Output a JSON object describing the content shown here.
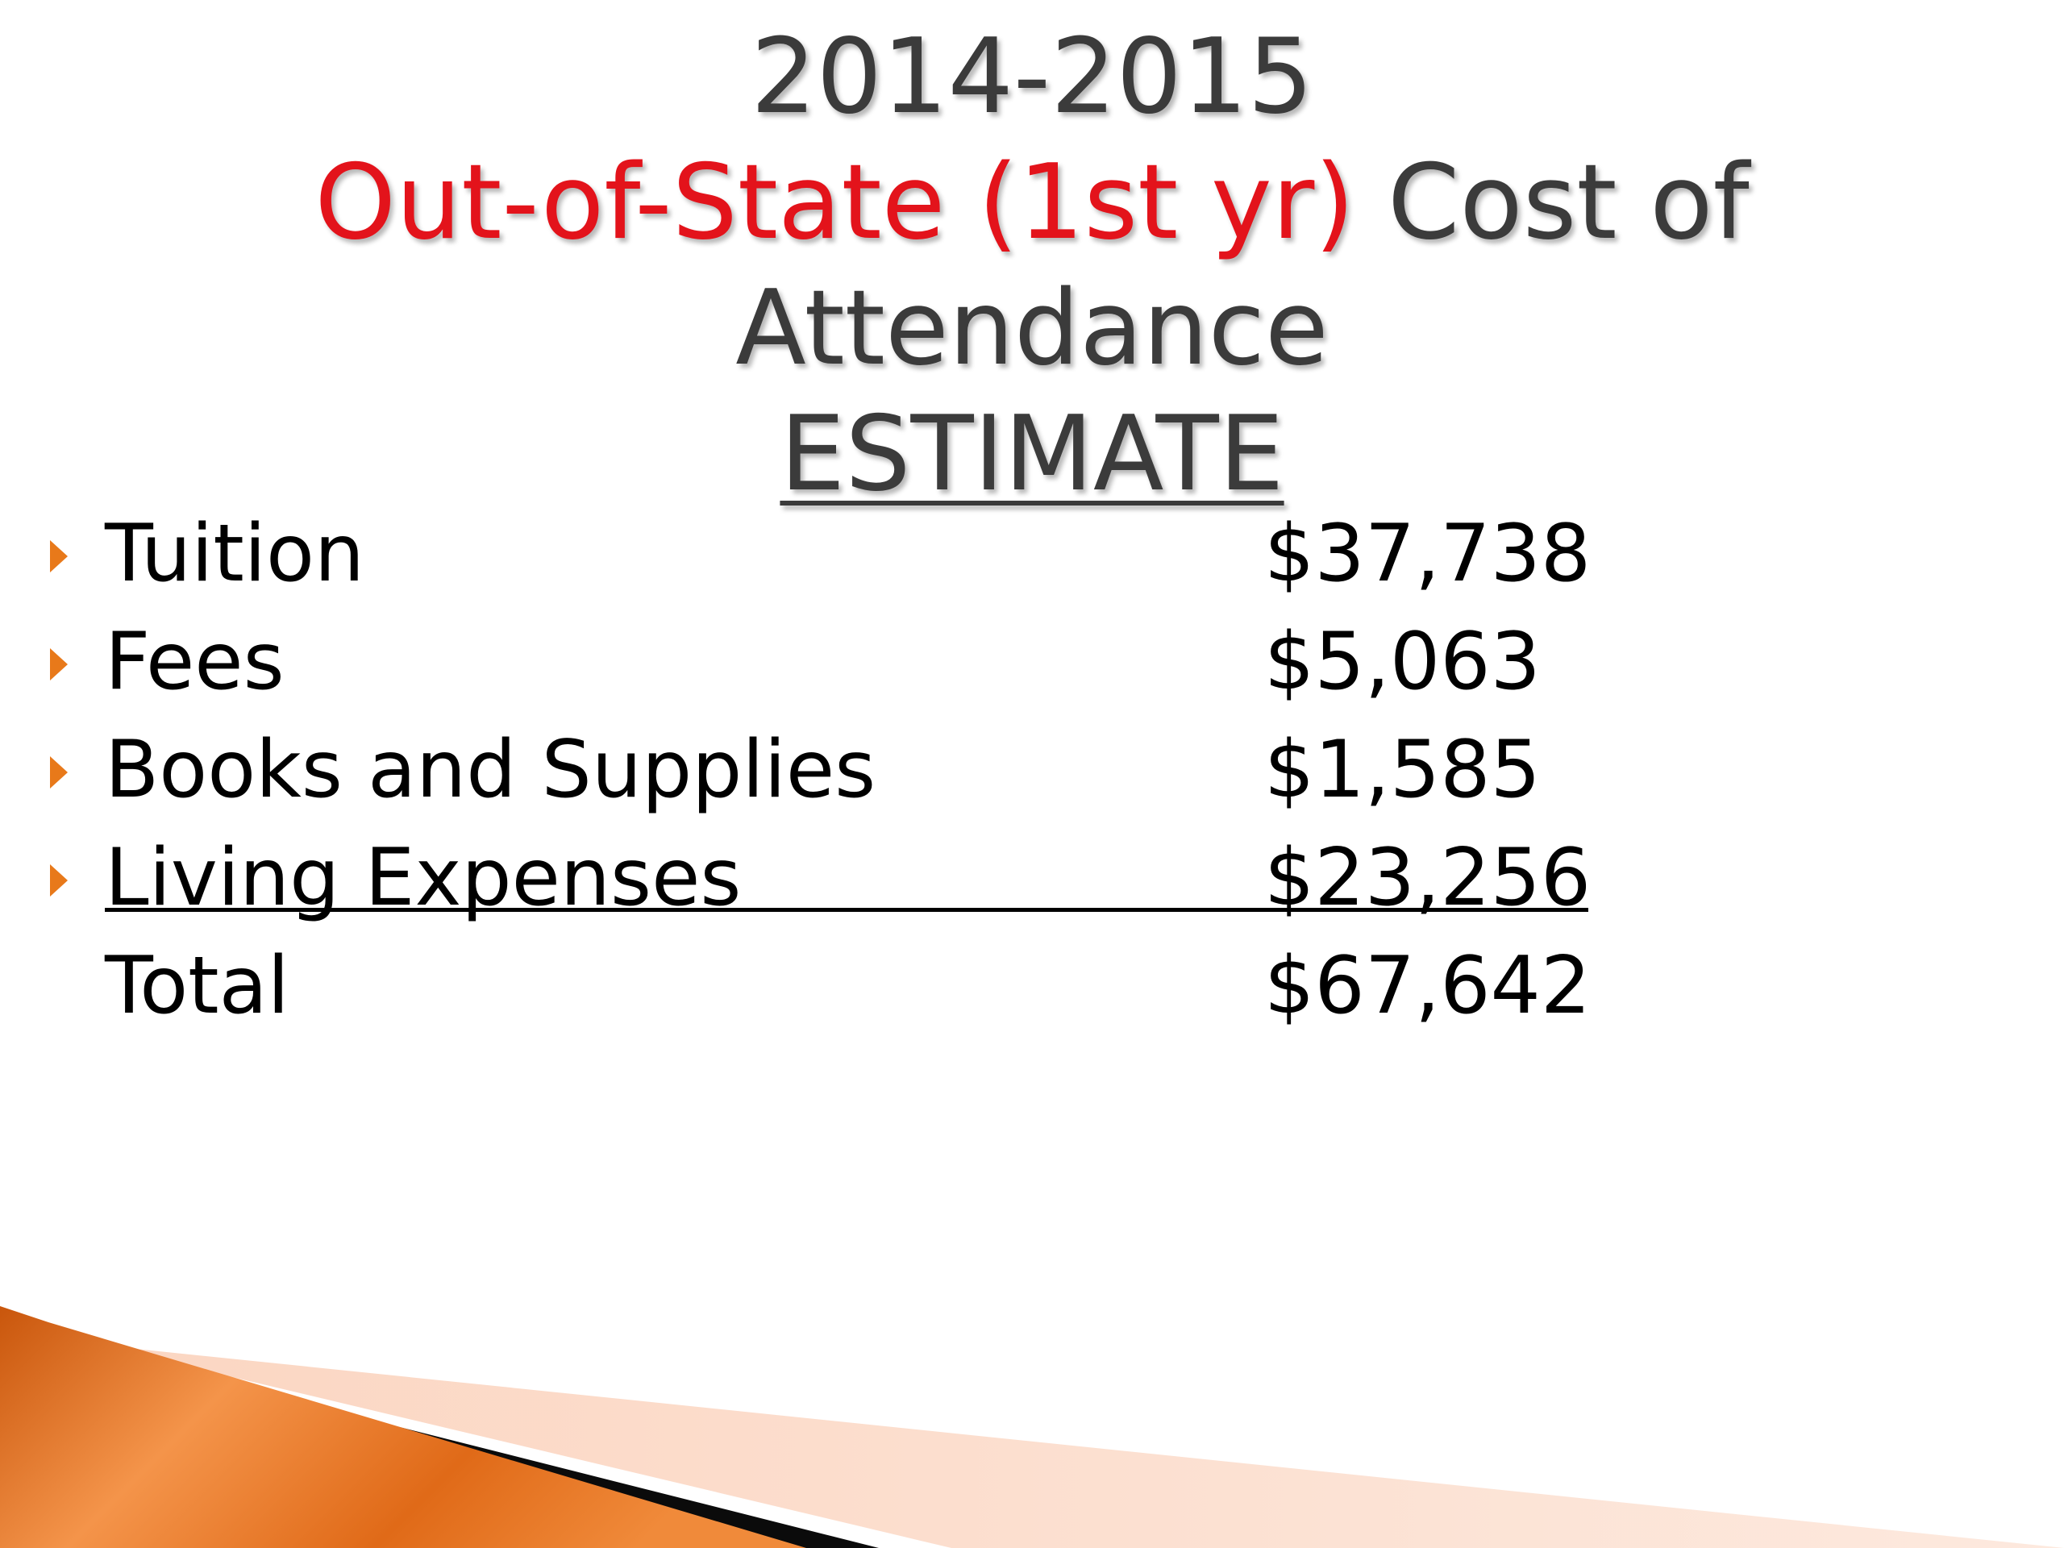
{
  "slide": {
    "title": {
      "line1": "2014-2015",
      "line2_accent": "Out-of-State (1st yr)",
      "line2_rest": " Cost of",
      "line3": "Attendance",
      "line4": "ESTIMATE"
    },
    "items": [
      {
        "label": "Tuition",
        "value": "$37,738"
      },
      {
        "label": "Fees",
        "value": "$5,063"
      },
      {
        "label": "Books and Supplies",
        "value": "$1,585"
      },
      {
        "label": "Living Expenses",
        "value": "$23,256"
      }
    ],
    "total": {
      "label": "Total",
      "value": "$67,642"
    },
    "colors": {
      "title": "#3b3b3b",
      "accent": "#e3131b",
      "bullet": "#e8791a",
      "decor_orange": "#e8751a"
    },
    "icons": {
      "bullet": "orange-triangle-bullet-icon"
    }
  }
}
